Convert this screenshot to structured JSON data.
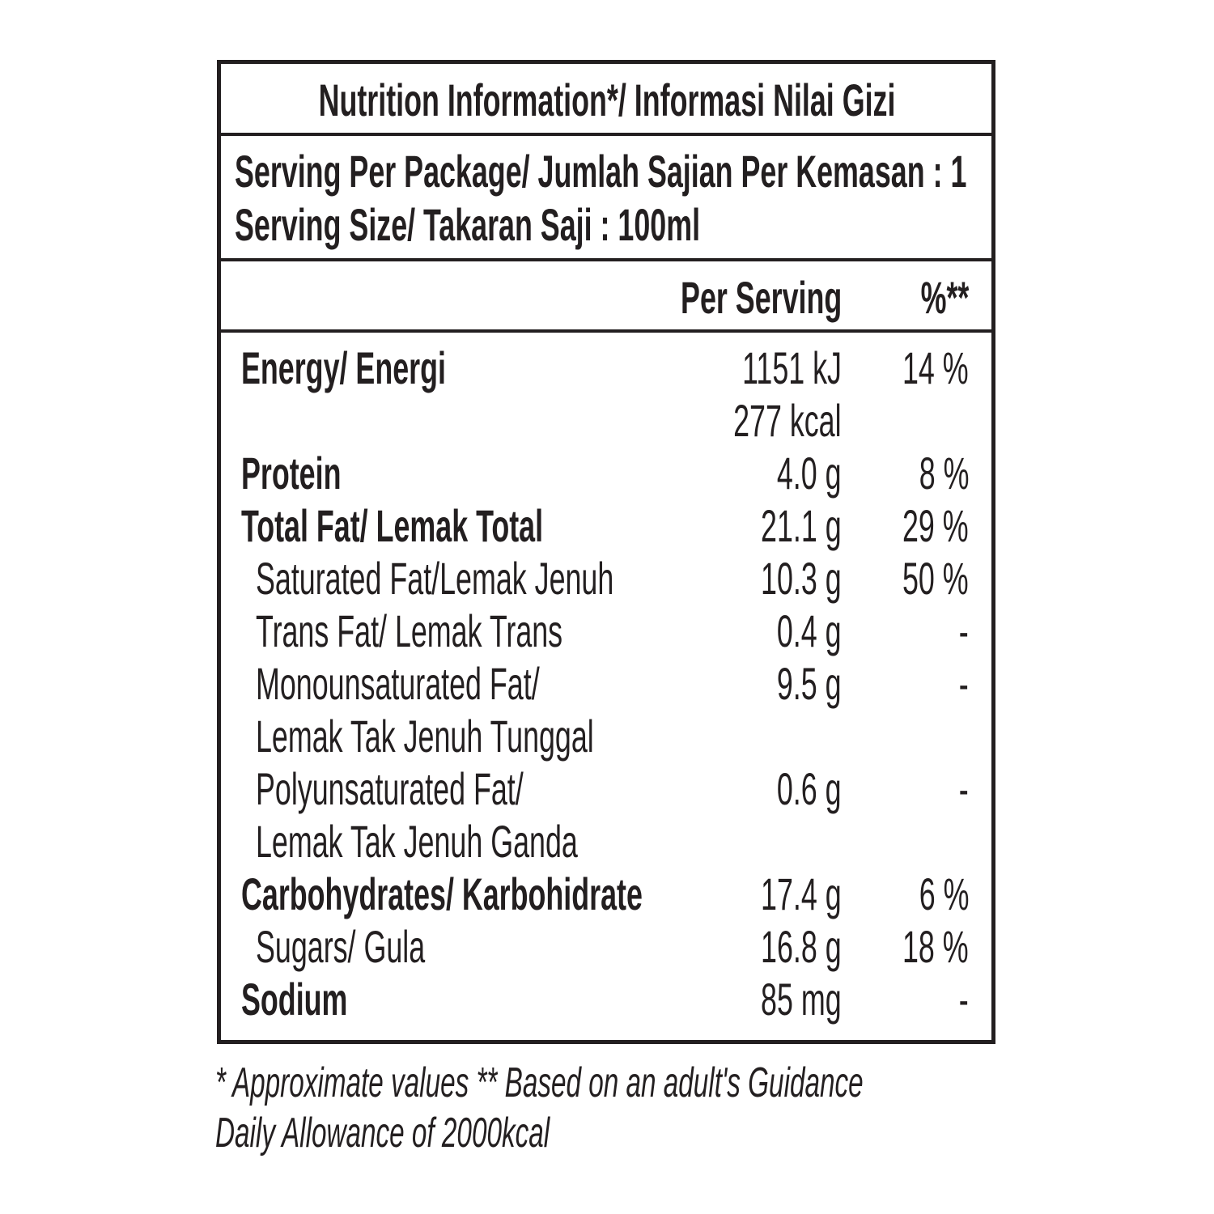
{
  "label": {
    "title": "Nutrition Information*/ Informasi Nilai Gizi",
    "serving": [
      "Serving Per Package/ Jumlah Sajian Per Kemasan : 1",
      "Serving Size/ Takaran Saji : 100ml"
    ],
    "columns": [
      "Per Serving",
      "%**"
    ],
    "nutrients": [
      {
        "label": [
          "Energy/ Energi"
        ],
        "value": [
          "1151 kJ",
          "277 kcal"
        ],
        "percent": "14 %"
      },
      {
        "label": [
          "Protein"
        ],
        "value": [
          "4.0 g"
        ],
        "percent": "8 %"
      },
      {
        "label": [
          "Total Fat/ Lemak Total"
        ],
        "value": [
          "21.1 g"
        ],
        "percent": "29 %",
        "sub": [
          {
            "label": [
              "Saturated Fat/Lemak Jenuh"
            ],
            "value": [
              "10.3 g"
            ],
            "percent": "50 %"
          },
          {
            "label": [
              "Trans Fat/ Lemak Trans"
            ],
            "value": [
              "0.4 g"
            ],
            "percent": "-"
          },
          {
            "label": [
              "Monounsaturated Fat/",
              "Lemak Tak Jenuh Tunggal"
            ],
            "value": [
              "9.5 g"
            ],
            "percent": "-"
          },
          {
            "label": [
              "Polyunsaturated Fat/",
              "Lemak Tak Jenuh Ganda"
            ],
            "value": [
              "0.6 g"
            ],
            "percent": "-"
          }
        ]
      },
      {
        "label": [
          "Carbohydrates/ Karbohidrate"
        ],
        "value": [
          "17.4 g"
        ],
        "percent": "6 %",
        "sub": [
          {
            "label": [
              "Sugars/ Gula"
            ],
            "value": [
              "16.8 g"
            ],
            "percent": "18 %"
          }
        ]
      },
      {
        "label": [
          "Sodium"
        ],
        "value": [
          "85 mg"
        ],
        "percent": "-"
      }
    ],
    "footnote": [
      "* Approximate values  ** Based on an adult's Guidance",
      "Daily Allowance of 2000kcal"
    ]
  }
}
